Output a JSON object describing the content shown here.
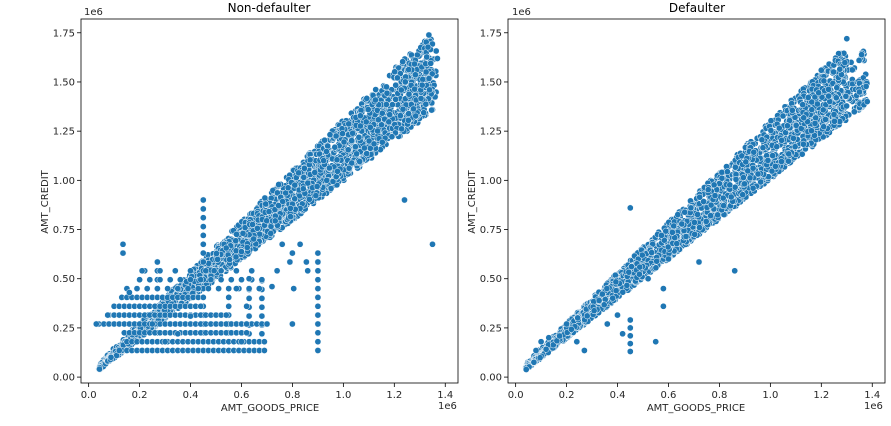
{
  "chart_data": [
    {
      "type": "scatter",
      "title": "Non-defaulter",
      "xlabel": "AMT_GOODS_PRICE",
      "ylabel": "AMT_CREDIT",
      "x_offset_label": "1e6",
      "y_offset_label": "1e6",
      "xlim": [
        -0.03,
        1.45
      ],
      "ylim": [
        -0.03,
        1.82
      ],
      "xticks": [
        0.0,
        0.2,
        0.4,
        0.6,
        0.8,
        1.0,
        1.2,
        1.4
      ],
      "xtick_labels": [
        "0.0",
        "0.2",
        "0.4",
        "0.6",
        "0.8",
        "1.0",
        "1.2",
        "1.4"
      ],
      "yticks": [
        0.0,
        0.25,
        0.5,
        0.75,
        1.0,
        1.25,
        1.5,
        1.75
      ],
      "ytick_labels": [
        "0.00",
        "0.25",
        "0.50",
        "0.75",
        "1.00",
        "1.25",
        "1.50",
        "1.75"
      ],
      "grid": false,
      "color": "#1f77b4",
      "bands": [
        {
          "x_start": 0.04,
          "x_end": 1.35,
          "slope": 1.27,
          "intercept": 0.01,
          "width": 0.02
        },
        {
          "x_start": 0.04,
          "x_end": 1.37,
          "slope": 1.2,
          "intercept": 0.0,
          "width": 0.02
        },
        {
          "x_start": 0.04,
          "x_end": 1.37,
          "slope": 1.12,
          "intercept": 0.0,
          "width": 0.025
        },
        {
          "x_start": 0.04,
          "x_end": 1.37,
          "slope": 1.07,
          "intercept": 0.0,
          "width": 0.02
        },
        {
          "x_start": 0.04,
          "x_end": 1.35,
          "slope": 1.02,
          "intercept": 0.0,
          "width": 0.015
        }
      ],
      "vertical_clusters": [
        {
          "x": 0.45,
          "y_start": 0.135,
          "y_end": 0.9,
          "step": 0.045
        },
        {
          "x": 0.9,
          "y_start": 0.135,
          "y_end": 0.67,
          "step": 0.045
        },
        {
          "x": 0.55,
          "y_start": 0.135,
          "y_end": 0.45,
          "step": 0.045
        },
        {
          "x": 0.68,
          "y_start": 0.22,
          "y_end": 0.5,
          "step": 0.045
        },
        {
          "x": 0.63,
          "y_start": 0.22,
          "y_end": 0.45,
          "step": 0.045
        },
        {
          "x": 0.27,
          "y_start": 0.135,
          "y_end": 0.55,
          "step": 0.045
        }
      ],
      "horizontal_rows": [
        {
          "y": 0.135,
          "x_start": 0.13,
          "x_end": 0.7,
          "step": 0.02
        },
        {
          "y": 0.18,
          "x_start": 0.15,
          "x_end": 0.7,
          "step": 0.02
        },
        {
          "y": 0.225,
          "x_start": 0.14,
          "x_end": 0.63,
          "step": 0.02
        },
        {
          "y": 0.27,
          "x_start": 0.04,
          "x_end": 0.7,
          "step": 0.02
        },
        {
          "y": 0.315,
          "x_start": 0.08,
          "x_end": 0.55,
          "step": 0.02
        },
        {
          "y": 0.36,
          "x_start": 0.1,
          "x_end": 0.45,
          "step": 0.02
        },
        {
          "y": 0.405,
          "x_start": 0.13,
          "x_end": 0.45,
          "step": 0.02
        },
        {
          "y": 0.45,
          "x_start": 0.15,
          "x_end": 0.68,
          "step": 0.04
        },
        {
          "y": 0.495,
          "x_start": 0.2,
          "x_end": 0.7,
          "step": 0.04
        },
        {
          "y": 0.54,
          "x_start": 0.22,
          "x_end": 0.68,
          "step": 0.06
        }
      ],
      "points": [
        {
          "x": 1.24,
          "y": 0.9
        },
        {
          "x": 1.35,
          "y": 0.675
        },
        {
          "x": 0.135,
          "y": 0.675
        },
        {
          "x": 0.135,
          "y": 0.63
        },
        {
          "x": 0.27,
          "y": 0.585
        },
        {
          "x": 0.21,
          "y": 0.54
        },
        {
          "x": 0.16,
          "y": 0.43
        },
        {
          "x": 0.76,
          "y": 0.675
        },
        {
          "x": 0.83,
          "y": 0.675
        },
        {
          "x": 0.805,
          "y": 0.45
        },
        {
          "x": 0.855,
          "y": 0.585
        },
        {
          "x": 0.86,
          "y": 0.54
        },
        {
          "x": 0.03,
          "y": 0.27
        },
        {
          "x": 0.075,
          "y": 0.315
        },
        {
          "x": 0.8,
          "y": 0.27
        },
        {
          "x": 0.62,
          "y": 0.27
        },
        {
          "x": 0.6,
          "y": 0.18
        },
        {
          "x": 0.58,
          "y": 0.45
        },
        {
          "x": 0.63,
          "y": 0.5
        },
        {
          "x": 0.74,
          "y": 0.54
        },
        {
          "x": 0.79,
          "y": 0.585
        },
        {
          "x": 0.8,
          "y": 0.63
        },
        {
          "x": 0.68,
          "y": 0.4
        },
        {
          "x": 0.62,
          "y": 0.36
        },
        {
          "x": 0.72,
          "y": 0.46
        },
        {
          "x": 0.4,
          "y": 0.31
        },
        {
          "x": 0.35,
          "y": 0.22
        },
        {
          "x": 0.3,
          "y": 0.18
        },
        {
          "x": 0.25,
          "y": 0.27
        },
        {
          "x": 0.12,
          "y": 0.135
        }
      ]
    },
    {
      "type": "scatter",
      "title": "Defaulter",
      "xlabel": "AMT_GOODS_PRICE",
      "ylabel": "AMT_CREDIT",
      "x_offset_label": "1e6",
      "y_offset_label": "1e6",
      "xlim": [
        -0.03,
        1.45
      ],
      "ylim": [
        -0.03,
        1.82
      ],
      "xticks": [
        0.0,
        0.2,
        0.4,
        0.6,
        0.8,
        1.0,
        1.2,
        1.4
      ],
      "xtick_labels": [
        "0.0",
        "0.2",
        "0.4",
        "0.6",
        "0.8",
        "1.0",
        "1.2",
        "1.4"
      ],
      "yticks": [
        0.0,
        0.25,
        0.5,
        0.75,
        1.0,
        1.25,
        1.5,
        1.75
      ],
      "ytick_labels": [
        "0.00",
        "0.25",
        "0.50",
        "0.75",
        "1.00",
        "1.25",
        "1.50",
        "1.75"
      ],
      "grid": false,
      "color": "#1f77b4",
      "bands": [
        {
          "x_start": 0.04,
          "x_end": 1.3,
          "slope": 1.27,
          "intercept": 0.01,
          "width": 0.015
        },
        {
          "x_start": 0.04,
          "x_end": 1.38,
          "slope": 1.2,
          "intercept": 0.0,
          "width": 0.02
        },
        {
          "x_start": 0.04,
          "x_end": 1.38,
          "slope": 1.12,
          "intercept": 0.0,
          "width": 0.02
        },
        {
          "x_start": 0.04,
          "x_end": 1.38,
          "slope": 1.07,
          "intercept": 0.0,
          "width": 0.015
        },
        {
          "x_start": 0.04,
          "x_end": 1.38,
          "slope": 1.02,
          "intercept": 0.0,
          "width": 0.01
        }
      ],
      "vertical_clusters": [
        {
          "x": 0.45,
          "y_start": 0.13,
          "y_end": 0.3,
          "step": 0.04
        }
      ],
      "horizontal_rows": [],
      "points": [
        {
          "x": 0.45,
          "y": 0.86
        },
        {
          "x": 0.72,
          "y": 0.585
        },
        {
          "x": 0.86,
          "y": 0.54
        },
        {
          "x": 0.58,
          "y": 0.45
        },
        {
          "x": 0.58,
          "y": 0.36
        },
        {
          "x": 0.36,
          "y": 0.27
        },
        {
          "x": 0.27,
          "y": 0.135
        },
        {
          "x": 0.4,
          "y": 0.315
        },
        {
          "x": 0.42,
          "y": 0.22
        },
        {
          "x": 0.55,
          "y": 0.18
        },
        {
          "x": 0.24,
          "y": 0.18
        },
        {
          "x": 0.1,
          "y": 0.18
        },
        {
          "x": 0.13,
          "y": 0.2
        },
        {
          "x": 0.2,
          "y": 0.27
        },
        {
          "x": 0.08,
          "y": 0.135
        },
        {
          "x": 1.38,
          "y": 1.4
        },
        {
          "x": 1.3,
          "y": 1.72
        },
        {
          "x": 1.2,
          "y": 1.56
        },
        {
          "x": 0.6,
          "y": 0.6
        },
        {
          "x": 0.52,
          "y": 0.5
        }
      ]
    }
  ]
}
